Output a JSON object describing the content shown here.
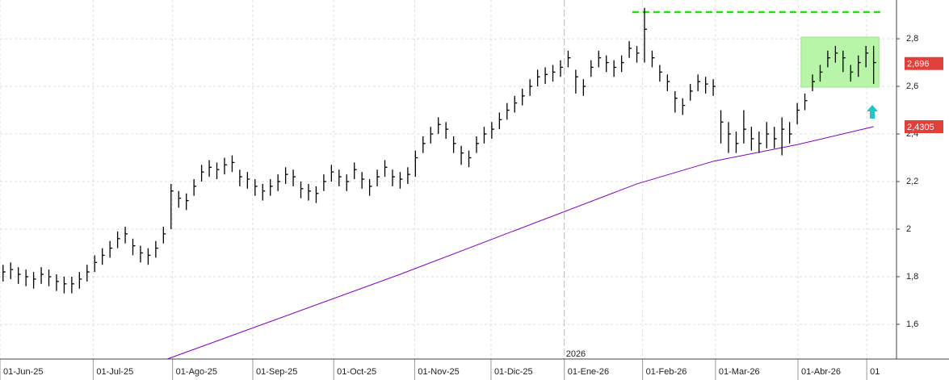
{
  "chart_data": {
    "type": "ohlc",
    "close": [
      1.82,
      1.83,
      1.81,
      1.8,
      1.79,
      1.81,
      1.8,
      1.78,
      1.77,
      1.77,
      1.79,
      1.82,
      1.86,
      1.89,
      1.92,
      1.96,
      1.98,
      1.93,
      1.9,
      1.89,
      1.92,
      1.98,
      2.16,
      2.13,
      2.12,
      2.18,
      2.24,
      2.26,
      2.25,
      2.27,
      2.28,
      2.22,
      2.21,
      2.18,
      2.16,
      2.18,
      2.2,
      2.23,
      2.22,
      2.17,
      2.16,
      2.15,
      2.2,
      2.24,
      2.22,
      2.2,
      2.25,
      2.21,
      2.18,
      2.22,
      2.26,
      2.22,
      2.21,
      2.23,
      2.3,
      2.36,
      2.4,
      2.44,
      2.42,
      2.36,
      2.32,
      2.3,
      2.36,
      2.4,
      2.42,
      2.46,
      2.5,
      2.53,
      2.56,
      2.6,
      2.64,
      2.65,
      2.66,
      2.68,
      2.72,
      2.64,
      2.6,
      2.68,
      2.72,
      2.7,
      2.68,
      2.7,
      2.76,
      2.74,
      2.84,
      2.72,
      2.66,
      2.62,
      2.55,
      2.52,
      2.58,
      2.62,
      2.61,
      2.6,
      2.45,
      2.4,
      2.36,
      2.42,
      2.38,
      2.36,
      2.4,
      2.38,
      2.42,
      2.4,
      2.5,
      2.54,
      2.62,
      2.66,
      2.72,
      2.74,
      2.72,
      2.66,
      2.7,
      2.74,
      2.7
    ],
    "high": [
      1.85,
      1.86,
      1.84,
      1.83,
      1.82,
      1.84,
      1.83,
      1.81,
      1.8,
      1.8,
      1.82,
      1.85,
      1.89,
      1.92,
      1.95,
      1.99,
      2.01,
      1.96,
      1.93,
      1.92,
      1.95,
      2.01,
      2.19,
      2.16,
      2.15,
      2.21,
      2.27,
      2.29,
      2.28,
      2.3,
      2.31,
      2.25,
      2.24,
      2.21,
      2.19,
      2.21,
      2.23,
      2.26,
      2.25,
      2.2,
      2.19,
      2.18,
      2.23,
      2.27,
      2.25,
      2.23,
      2.28,
      2.24,
      2.21,
      2.25,
      2.29,
      2.25,
      2.24,
      2.26,
      2.33,
      2.39,
      2.43,
      2.47,
      2.45,
      2.39,
      2.35,
      2.33,
      2.39,
      2.43,
      2.45,
      2.49,
      2.53,
      2.56,
      2.59,
      2.63,
      2.67,
      2.68,
      2.69,
      2.71,
      2.75,
      2.67,
      2.63,
      2.71,
      2.75,
      2.73,
      2.71,
      2.73,
      2.79,
      2.77,
      2.93,
      2.75,
      2.69,
      2.65,
      2.58,
      2.55,
      2.61,
      2.65,
      2.64,
      2.63,
      2.5,
      2.45,
      2.41,
      2.5,
      2.43,
      2.41,
      2.45,
      2.43,
      2.47,
      2.45,
      2.53,
      2.57,
      2.65,
      2.69,
      2.75,
      2.77,
      2.75,
      2.69,
      2.73,
      2.77,
      2.77
    ],
    "low": [
      1.78,
      1.79,
      1.77,
      1.76,
      1.75,
      1.77,
      1.76,
      1.74,
      1.73,
      1.73,
      1.75,
      1.78,
      1.82,
      1.85,
      1.88,
      1.92,
      1.94,
      1.89,
      1.86,
      1.85,
      1.88,
      1.94,
      2.0,
      2.09,
      2.08,
      2.14,
      2.2,
      2.22,
      2.21,
      2.23,
      2.24,
      2.18,
      2.17,
      2.14,
      2.12,
      2.14,
      2.16,
      2.19,
      2.18,
      2.13,
      2.12,
      2.11,
      2.16,
      2.2,
      2.18,
      2.16,
      2.21,
      2.17,
      2.14,
      2.18,
      2.22,
      2.18,
      2.17,
      2.19,
      2.22,
      2.32,
      2.36,
      2.4,
      2.38,
      2.32,
      2.27,
      2.26,
      2.32,
      2.36,
      2.38,
      2.42,
      2.46,
      2.49,
      2.52,
      2.56,
      2.6,
      2.61,
      2.62,
      2.64,
      2.68,
      2.57,
      2.56,
      2.64,
      2.68,
      2.66,
      2.64,
      2.66,
      2.72,
      2.7,
      2.7,
      2.68,
      2.62,
      2.58,
      2.49,
      2.48,
      2.54,
      2.58,
      2.57,
      2.56,
      2.36,
      2.32,
      2.32,
      2.36,
      2.33,
      2.32,
      2.34,
      2.34,
      2.31,
      2.36,
      2.44,
      2.5,
      2.58,
      2.62,
      2.68,
      2.7,
      2.66,
      2.62,
      2.64,
      2.68,
      2.61
    ],
    "bar_color": "#000000",
    "moving_average": {
      "color": "#8000c0",
      "x": [
        21.5,
        52,
        83,
        93,
        104,
        114
      ],
      "values": [
        1.454,
        1.81,
        2.19,
        2.285,
        2.355,
        2.4305
      ]
    },
    "resistance": {
      "value": 2.912,
      "x": [
        82.4,
        115
      ],
      "color": "#22dd11"
    },
    "range_box": {
      "x": [
        104.5,
        114.7
      ],
      "y": [
        2.597,
        2.807
      ],
      "color": "#b8f5a8"
    },
    "price_labels": [
      {
        "value": 2.696,
        "label": "2,696"
      },
      {
        "value": 2.4305,
        "label": "2,4305"
      }
    ],
    "xlim": [
      -0.4,
      117
    ],
    "ylim": [
      1.454,
      2.963
    ],
    "yticks": [
      {
        "value": 1.6,
        "label": "1,6"
      },
      {
        "value": 1.8,
        "label": "1,8"
      },
      {
        "value": 2,
        "label": "2"
      },
      {
        "value": 2.2,
        "label": "2,2"
      },
      {
        "value": 2.4,
        "label": "2,4"
      },
      {
        "value": 2.6,
        "label": "2,6"
      },
      {
        "value": 2.8,
        "label": "2,8"
      }
    ],
    "xticks": [
      {
        "value": -0.4,
        "label": "01-Jun-25"
      },
      {
        "value": 11.8,
        "label": "01-Jul-25"
      },
      {
        "value": 22.2,
        "label": "01-Ago-25"
      },
      {
        "value": 32.7,
        "label": "01-Sep-25"
      },
      {
        "value": 43.3,
        "label": "01-Oct-25"
      },
      {
        "value": 53.9,
        "label": "01-Nov-25"
      },
      {
        "value": 63.9,
        "label": "01-Dic-25"
      },
      {
        "value": 73.5,
        "label": "01-Ene-26"
      },
      {
        "value": 83.75,
        "label": "01-Feb-26"
      },
      {
        "value": 93.3,
        "label": "01-Mar-26"
      },
      {
        "value": 104.1,
        "label": "01-Abr-26"
      },
      {
        "value": 113.1,
        "label": "01"
      }
    ],
    "year_marker": {
      "value": 73.5,
      "label": "2026"
    },
    "grid": true
  }
}
